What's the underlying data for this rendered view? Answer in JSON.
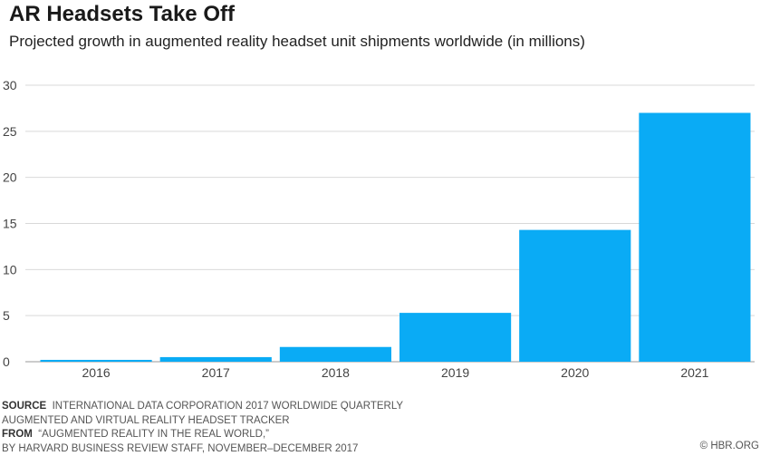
{
  "chart_data": {
    "type": "bar",
    "title": "AR Headsets Take Off",
    "subtitle": "Projected growth in augmented reality headset unit shipments worldwide (in millions)",
    "categories": [
      "2016",
      "2017",
      "2018",
      "2019",
      "2020",
      "2021"
    ],
    "values": [
      0.2,
      0.5,
      1.6,
      5.3,
      14.3,
      27.0
    ],
    "ylim": [
      0,
      30
    ],
    "yticks": [
      0,
      5,
      10,
      15,
      20,
      25,
      30
    ],
    "xlabel": "",
    "ylabel": "",
    "grid": true,
    "bar_color": "#0AABF5",
    "grid_color": "#D9D9D9"
  },
  "footer": {
    "source_label": "SOURCE",
    "source_line1": "INTERNATIONAL DATA CORPORATION 2017 WORLDWIDE QUARTERLY",
    "source_line2": "AUGMENTED AND VIRTUAL REALITY HEADSET TRACKER",
    "from_label": "FROM",
    "from_line1": "“AUGMENTED REALITY IN THE REAL WORLD,”",
    "from_line2": "BY HARVARD BUSINESS REVIEW STAFF, NOVEMBER–DECEMBER 2017",
    "copyright": "© HBR.ORG"
  }
}
